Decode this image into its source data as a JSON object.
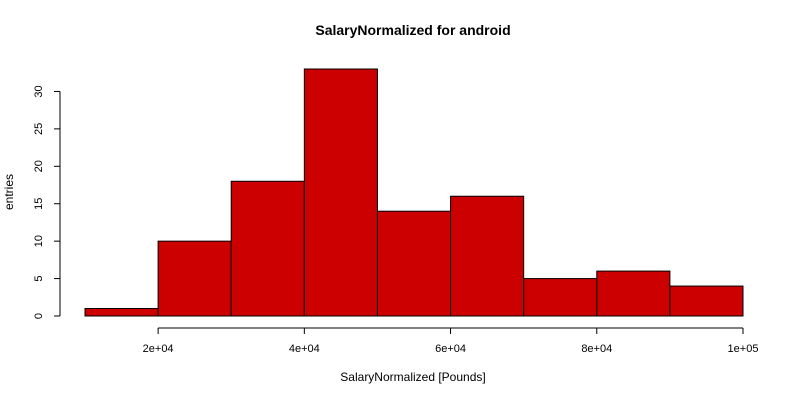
{
  "chart_data": {
    "type": "bar",
    "title": "SalaryNormalized for android",
    "xlabel": "SalaryNormalized [Pounds]",
    "ylabel": "entries",
    "bin_edges": [
      10000,
      20000,
      30000,
      40000,
      50000,
      60000,
      70000,
      80000,
      90000,
      100000
    ],
    "values": [
      1,
      10,
      18,
      33,
      14,
      16,
      5,
      6,
      4
    ],
    "xlim": [
      10000,
      100000
    ],
    "ylim": [
      0,
      33
    ],
    "x_ticks": [
      20000,
      40000,
      60000,
      80000,
      100000
    ],
    "x_tick_labels": [
      "2e+04",
      "4e+04",
      "6e+04",
      "8e+04",
      "1e+05"
    ],
    "y_ticks": [
      0,
      5,
      10,
      15,
      20,
      25,
      30
    ],
    "y_tick_labels": [
      "0",
      "5",
      "10",
      "15",
      "20",
      "25",
      "30"
    ],
    "bar_color": "#cd0000",
    "grid": false,
    "legend": "none"
  }
}
